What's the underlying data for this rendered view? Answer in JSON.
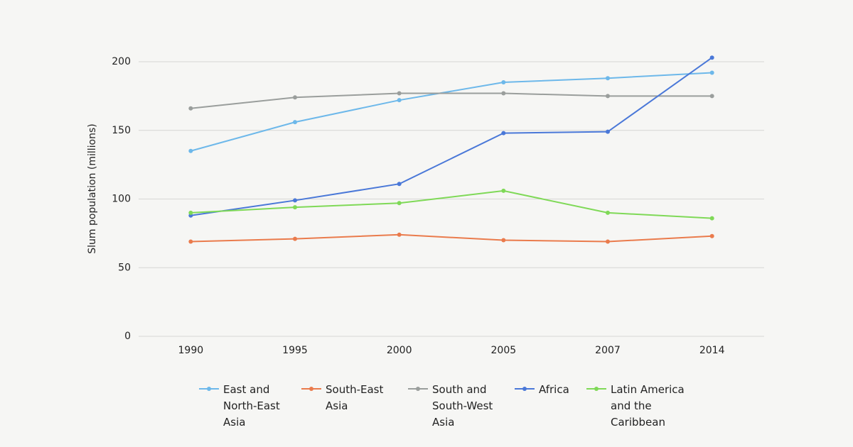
{
  "chart_data": {
    "type": "line",
    "y_label": "Slum population (millions)",
    "categories": [
      "1990",
      "1995",
      "2000",
      "2005",
      "2007",
      "2014"
    ],
    "ylim": [
      0,
      200
    ],
    "yticks": [
      0,
      50,
      100,
      150,
      200
    ],
    "grid": true,
    "legend": "bottom",
    "series": [
      {
        "name": "East and North-East Asia",
        "color": "#6db8ea",
        "values": [
          135,
          156,
          172,
          185,
          188,
          192
        ]
      },
      {
        "name": "South-East Asia",
        "color": "#ea7b4c",
        "values": [
          69,
          71,
          74,
          70,
          69,
          73
        ]
      },
      {
        "name": "South and South-West Asia",
        "color": "#9a9e9c",
        "values": [
          166,
          174,
          177,
          177,
          175,
          175
        ]
      },
      {
        "name": "Africa",
        "color": "#4a78d8",
        "values": [
          88,
          99,
          111,
          148,
          149,
          203
        ]
      },
      {
        "name": "Latin America and the Caribbean",
        "color": "#7fd957",
        "values": [
          90,
          94,
          97,
          106,
          90,
          86
        ]
      }
    ]
  }
}
